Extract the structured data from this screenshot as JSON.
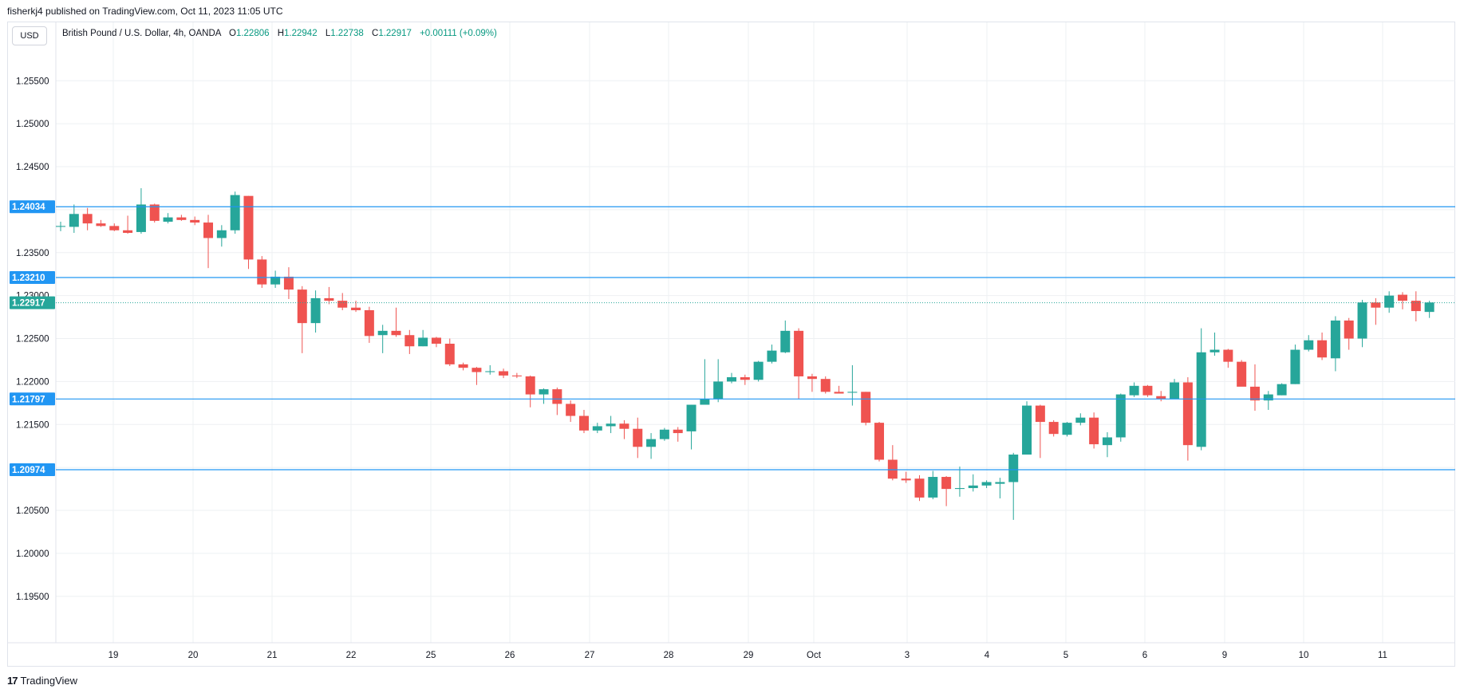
{
  "header": {
    "published": "fisherkj4 published on TradingView.com, Oct 11, 2023 11:05 UTC"
  },
  "currency_button": "USD",
  "legend": {
    "symbol": "British Pound / U.S. Dollar, 4h, OANDA",
    "o_label": "O",
    "o_value": "1.22806",
    "h_label": "H",
    "h_value": "1.22942",
    "l_label": "L",
    "l_value": "1.22738",
    "c_label": "C",
    "c_value": "1.22917",
    "change": "+0.00111 (+0.09%)"
  },
  "footer": {
    "logo_text": "TradingView",
    "logo_mark": "17"
  },
  "colors": {
    "up": "#26a69a",
    "down": "#ef5350",
    "hline": "#2196f3",
    "price_tag": "#26a69a",
    "grid": "#eef0f3"
  },
  "chart_data": {
    "type": "candlestick",
    "y_ticks": [
      "1.25500",
      "1.25000",
      "1.24500",
      "1.24000",
      "1.23500",
      "1.23000",
      "1.22500",
      "1.22000",
      "1.21500",
      "1.21000",
      "1.20500",
      "1.20000",
      "1.19500"
    ],
    "x_ticks": [
      "19",
      "20",
      "21",
      "22",
      "25",
      "26",
      "27",
      "28",
      "29",
      "Oct",
      "3",
      "4",
      "5",
      "6",
      "9",
      "10",
      "11"
    ],
    "ylim": [
      1.1896,
      1.2618
    ],
    "horizontal_levels": [
      {
        "price": 1.24034,
        "label": "1.24034"
      },
      {
        "price": 1.2321,
        "label": "1.23210"
      },
      {
        "price": 1.21797,
        "label": "1.21797"
      },
      {
        "price": 1.20974,
        "label": "1.20974"
      }
    ],
    "last_price": {
      "price": 1.22917,
      "label": "1.22917"
    },
    "candles": [
      [
        1.238,
        1.2386,
        1.2375,
        1.2381
      ],
      [
        1.238,
        1.2406,
        1.2373,
        1.2395
      ],
      [
        1.2395,
        1.2402,
        1.2376,
        1.2384
      ],
      [
        1.2384,
        1.2388,
        1.238,
        1.2381
      ],
      [
        1.2381,
        1.2384,
        1.2375,
        1.2376
      ],
      [
        1.2376,
        1.2393,
        1.2372,
        1.2373
      ],
      [
        1.2374,
        1.2425,
        1.2372,
        1.2406
      ],
      [
        1.2406,
        1.2407,
        1.2385,
        1.2387
      ],
      [
        1.2386,
        1.2396,
        1.2384,
        1.2391
      ],
      [
        1.2391,
        1.2394,
        1.2387,
        1.2388
      ],
      [
        1.2388,
        1.2392,
        1.2382,
        1.2385
      ],
      [
        1.2385,
        1.2394,
        1.2332,
        1.2367
      ],
      [
        1.2367,
        1.2382,
        1.2357,
        1.2376
      ],
      [
        1.2376,
        1.2421,
        1.2372,
        1.2417
      ],
      [
        1.2416,
        1.2416,
        1.2331,
        1.2342
      ],
      [
        1.2342,
        1.2346,
        1.2309,
        1.2313
      ],
      [
        1.2313,
        1.2329,
        1.2309,
        1.2322
      ],
      [
        1.2322,
        1.2333,
        1.2296,
        1.2307
      ],
      [
        1.2307,
        1.2311,
        1.2233,
        1.2268
      ],
      [
        1.2268,
        1.2306,
        1.2257,
        1.2297
      ],
      [
        1.2297,
        1.231,
        1.229,
        1.2294
      ],
      [
        1.2294,
        1.2303,
        1.2283,
        1.2286
      ],
      [
        1.2286,
        1.2294,
        1.2281,
        1.2283
      ],
      [
        1.2283,
        1.2287,
        1.2245,
        1.2253
      ],
      [
        1.2254,
        1.2266,
        1.2233,
        1.2259
      ],
      [
        1.2259,
        1.2286,
        1.2252,
        1.2254
      ],
      [
        1.2254,
        1.226,
        1.2232,
        1.2241
      ],
      [
        1.2241,
        1.226,
        1.2241,
        1.2251
      ],
      [
        1.2251,
        1.2252,
        1.224,
        1.2244
      ],
      [
        1.2244,
        1.225,
        1.2218,
        1.222
      ],
      [
        1.222,
        1.2222,
        1.2213,
        1.2216
      ],
      [
        1.2216,
        1.2217,
        1.2196,
        1.2211
      ],
      [
        1.2211,
        1.2219,
        1.2208,
        1.2212
      ],
      [
        1.2212,
        1.2215,
        1.2204,
        1.2207
      ],
      [
        1.2207,
        1.221,
        1.2204,
        1.2206
      ],
      [
        1.2206,
        1.2207,
        1.217,
        1.2185
      ],
      [
        1.2185,
        1.2192,
        1.2174,
        1.2191
      ],
      [
        1.2191,
        1.2193,
        1.2161,
        1.2174
      ],
      [
        1.2174,
        1.2178,
        1.2153,
        1.216
      ],
      [
        1.216,
        1.2167,
        1.214,
        1.2143
      ],
      [
        1.2143,
        1.2152,
        1.214,
        1.2148
      ],
      [
        1.2148,
        1.216,
        1.214,
        1.2151
      ],
      [
        1.2151,
        1.2155,
        1.2133,
        1.2145
      ],
      [
        1.2145,
        1.2158,
        1.2111,
        1.2124
      ],
      [
        1.2124,
        1.214,
        1.211,
        1.2133
      ],
      [
        1.2133,
        1.2146,
        1.2131,
        1.2144
      ],
      [
        1.2144,
        1.2147,
        1.213,
        1.214
      ],
      [
        1.2142,
        1.2173,
        1.2121,
        1.2173
      ],
      [
        1.2173,
        1.2226,
        1.2173,
        1.218
      ],
      [
        1.218,
        1.2226,
        1.2176,
        1.22
      ],
      [
        1.22,
        1.221,
        1.2198,
        1.2205
      ],
      [
        1.2205,
        1.2208,
        1.2196,
        1.2202
      ],
      [
        1.2202,
        1.2224,
        1.22,
        1.2223
      ],
      [
        1.2223,
        1.2243,
        1.2221,
        1.2236
      ],
      [
        1.2234,
        1.2271,
        1.2233,
        1.2259
      ],
      [
        1.2259,
        1.2262,
        1.218,
        1.2206
      ],
      [
        1.2206,
        1.2209,
        1.2188,
        1.2203
      ],
      [
        1.2203,
        1.2206,
        1.2186,
        1.2188
      ],
      [
        1.2188,
        1.2195,
        1.2186,
        1.2186
      ],
      [
        1.2187,
        1.2219,
        1.2172,
        1.2188
      ],
      [
        1.2188,
        1.2188,
        1.2149,
        1.2152
      ],
      [
        1.2152,
        1.2153,
        1.2107,
        1.2109
      ],
      [
        1.2109,
        1.2126,
        1.2085,
        1.2087
      ],
      [
        1.2087,
        1.2095,
        1.2082,
        1.2085
      ],
      [
        1.2087,
        1.2091,
        1.2061,
        1.2065
      ],
      [
        1.2065,
        1.2096,
        1.2063,
        1.2089
      ],
      [
        1.2089,
        1.209,
        1.2055,
        1.2075
      ],
      [
        1.2075,
        1.2101,
        1.2066,
        1.2076
      ],
      [
        1.2076,
        1.2092,
        1.2072,
        1.2079
      ],
      [
        1.2079,
        1.2085,
        1.2076,
        1.2083
      ],
      [
        1.2081,
        1.2088,
        1.2064,
        1.2083
      ],
      [
        1.2083,
        1.2117,
        1.2039,
        1.2115
      ],
      [
        1.2115,
        1.2177,
        1.2115,
        1.2172
      ],
      [
        1.2172,
        1.2173,
        1.2111,
        1.2153
      ],
      [
        1.2153,
        1.2155,
        1.2136,
        1.2139
      ],
      [
        1.2138,
        1.2153,
        1.2136,
        1.2152
      ],
      [
        1.2152,
        1.2163,
        1.2149,
        1.2158
      ],
      [
        1.2158,
        1.2164,
        1.2122,
        1.2127
      ],
      [
        1.2126,
        1.2141,
        1.2112,
        1.2135
      ],
      [
        1.2135,
        1.2186,
        1.213,
        1.2185
      ],
      [
        1.2184,
        1.2199,
        1.2182,
        1.2195
      ],
      [
        1.2195,
        1.2196,
        1.2182,
        1.2184
      ],
      [
        1.2183,
        1.2189,
        1.2177,
        1.218
      ],
      [
        1.218,
        1.2203,
        1.218,
        1.2199
      ],
      [
        1.2199,
        1.2205,
        1.2108,
        1.2126
      ],
      [
        1.2124,
        1.2262,
        1.212,
        1.2234
      ],
      [
        1.2234,
        1.2257,
        1.223,
        1.2237
      ],
      [
        1.2237,
        1.2238,
        1.2216,
        1.2223
      ],
      [
        1.2223,
        1.2225,
        1.2195,
        1.2194
      ],
      [
        1.2194,
        1.222,
        1.2166,
        1.2178
      ],
      [
        1.2178,
        1.2189,
        1.2167,
        1.2185
      ],
      [
        1.2184,
        1.2198,
        1.2184,
        1.2197
      ],
      [
        1.2197,
        1.2243,
        1.2197,
        1.2237
      ],
      [
        1.2237,
        1.2254,
        1.2235,
        1.2248
      ],
      [
        1.2248,
        1.2257,
        1.2225,
        1.2228
      ],
      [
        1.2227,
        1.2276,
        1.2212,
        1.2271
      ],
      [
        1.2271,
        1.2274,
        1.2237,
        1.225
      ],
      [
        1.225,
        1.2295,
        1.224,
        1.2292
      ],
      [
        1.2292,
        1.2297,
        1.2266,
        1.2286
      ],
      [
        1.2286,
        1.2305,
        1.228,
        1.23
      ],
      [
        1.2301,
        1.2304,
        1.2284,
        1.2294
      ],
      [
        1.2294,
        1.2305,
        1.227,
        1.2282
      ],
      [
        1.2281,
        1.2294,
        1.2274,
        1.2292
      ]
    ]
  }
}
